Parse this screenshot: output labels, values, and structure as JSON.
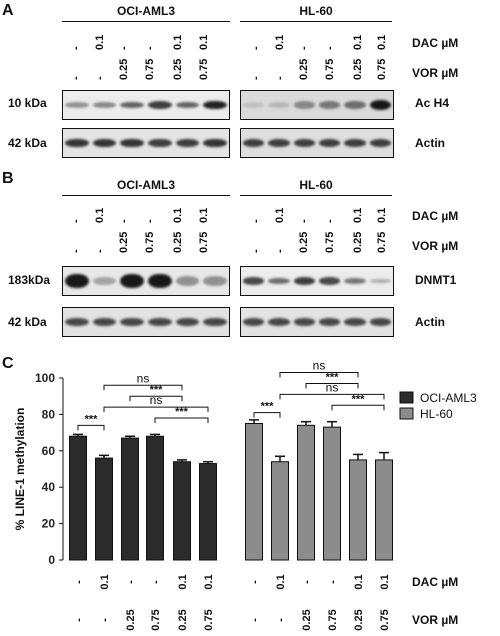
{
  "panel_a": {
    "letter": "A",
    "cell_lines": [
      "OCI-AML3",
      "HL-60"
    ],
    "dac_label": "DAC µM",
    "vor_label": "VOR µM",
    "dac_values": [
      "-",
      "0.1",
      "-",
      "-",
      "0.1",
      "0.1"
    ],
    "vor_values": [
      "-",
      "-",
      "0.25",
      "0.75",
      "0.25",
      "0.75"
    ],
    "blots": [
      {
        "size": "10 kDa",
        "protein": "Ac H4"
      },
      {
        "size": "42 kDa",
        "protein": "Actin"
      }
    ]
  },
  "panel_b": {
    "letter": "B",
    "cell_lines": [
      "OCI-AML3",
      "HL-60"
    ],
    "dac_label": "DAC µM",
    "vor_label": "VOR µM",
    "dac_values": [
      "-",
      "0.1",
      "-",
      "-",
      "0.1",
      "0.1"
    ],
    "vor_values": [
      "-",
      "-",
      "0.25",
      "0.75",
      "0.25",
      "0.75"
    ],
    "blots": [
      {
        "size": "183kDa",
        "protein": "DNMT1"
      },
      {
        "size": "42 kDa",
        "protein": "Actin"
      }
    ]
  },
  "panel_c": {
    "letter": "C",
    "dac_label": "DAC µM",
    "vor_label": "VOR µM",
    "dac_values": [
      "-",
      "0.1",
      "-",
      "-",
      "0.1",
      "0.1"
    ],
    "vor_values": [
      "-",
      "-",
      "0.25",
      "0.75",
      "0.25",
      "0.75"
    ],
    "ns_label": "ns",
    "sig_label": "***"
  },
  "chart_data": {
    "type": "bar",
    "title": "",
    "ylabel": "% LINE-1 methylation",
    "ylim": [
      0,
      100
    ],
    "yticks": [
      0,
      20,
      40,
      60,
      80,
      100
    ],
    "legend_position": "top-right",
    "series": [
      {
        "name": "OCI-AML3",
        "color": "#2b2b2b",
        "values": [
          68,
          56,
          67,
          68,
          54,
          53
        ],
        "errors": [
          1,
          1.5,
          1,
          1,
          1,
          1
        ]
      },
      {
        "name": "HL-60",
        "color": "#8c8c8c",
        "values": [
          75,
          54,
          74,
          73,
          55,
          55
        ],
        "errors": [
          2,
          3,
          2,
          3,
          3,
          4
        ]
      }
    ],
    "comparisons": [
      {
        "series": 0,
        "from": 0,
        "to": 1,
        "label": "***",
        "level": 0
      },
      {
        "series": 0,
        "from": 1,
        "to": 4,
        "label": "ns",
        "level": 2
      },
      {
        "series": 0,
        "from": 1,
        "to": 5,
        "label": "ns",
        "level": 0
      },
      {
        "series": 0,
        "from": 2,
        "to": 4,
        "label": "***",
        "level": 1
      },
      {
        "series": 0,
        "from": 3,
        "to": 5,
        "label": "***",
        "level": -1
      },
      {
        "series": 1,
        "from": 0,
        "to": 1,
        "label": "***",
        "level": 0
      },
      {
        "series": 1,
        "from": 1,
        "to": 4,
        "label": "ns",
        "level": 2
      },
      {
        "series": 1,
        "from": 1,
        "to": 5,
        "label": "ns",
        "level": 0
      },
      {
        "series": 1,
        "from": 2,
        "to": 4,
        "label": "***",
        "level": 1
      },
      {
        "series": 1,
        "from": 3,
        "to": 5,
        "label": "***",
        "level": -1
      }
    ]
  }
}
